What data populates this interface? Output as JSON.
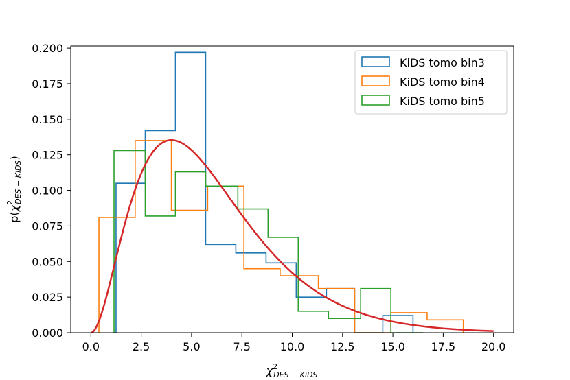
{
  "chart_data": {
    "type": "histogram",
    "xlabel": "χ²DES − KiDS",
    "ylabel": "p(χ²DES − KiDS)",
    "xlim": [
      -1.0,
      21.0
    ],
    "ylim": [
      0.0,
      0.2015
    ],
    "x_ticks": [
      0.0,
      2.5,
      5.0,
      7.5,
      10.0,
      12.5,
      15.0,
      17.5,
      20.0
    ],
    "x_tick_labels": [
      "0.0",
      "2.5",
      "5.0",
      "7.5",
      "10.0",
      "12.5",
      "15.0",
      "17.5",
      "20.0"
    ],
    "y_ticks": [
      0.0,
      0.025,
      0.05,
      0.075,
      0.1,
      0.125,
      0.15,
      0.175,
      0.2
    ],
    "y_tick_labels": [
      "0.000",
      "0.025",
      "0.050",
      "0.075",
      "0.100",
      "0.125",
      "0.150",
      "0.175",
      "0.200"
    ],
    "grid": false,
    "legend_position": "top-right",
    "series": [
      {
        "name": "KiDS tomo bin3",
        "color": "#1f77b4",
        "edges": [
          1.25,
          2.7,
          4.2,
          5.7,
          7.2,
          8.7,
          10.2,
          11.7,
          13.1,
          14.5,
          16.0
        ],
        "values": [
          0.105,
          0.142,
          0.197,
          0.062,
          0.056,
          0.049,
          0.025,
          0.031,
          0.0,
          0.012
        ]
      },
      {
        "name": "KiDS tomo bin4",
        "color": "#ff7f0e",
        "edges": [
          0.4,
          2.2,
          4.0,
          5.8,
          7.6,
          9.4,
          11.3,
          13.1,
          14.9,
          16.7,
          18.5
        ],
        "values": [
          0.081,
          0.135,
          0.086,
          0.103,
          0.045,
          0.04,
          0.031,
          0.0,
          0.014,
          0.009
        ]
      },
      {
        "name": "KiDS tomo bin5",
        "color": "#2ca02c",
        "edges": [
          1.15,
          2.7,
          4.2,
          5.7,
          7.3,
          8.8,
          10.3,
          11.8,
          13.4,
          14.9,
          16.5
        ],
        "values": [
          0.128,
          0.082,
          0.113,
          0.103,
          0.087,
          0.067,
          0.015,
          0.01,
          0.031,
          0.0
        ]
      }
    ],
    "curve": {
      "color": "#d62728",
      "dof": 6,
      "x_range": [
        0.0,
        20.0
      ]
    }
  }
}
